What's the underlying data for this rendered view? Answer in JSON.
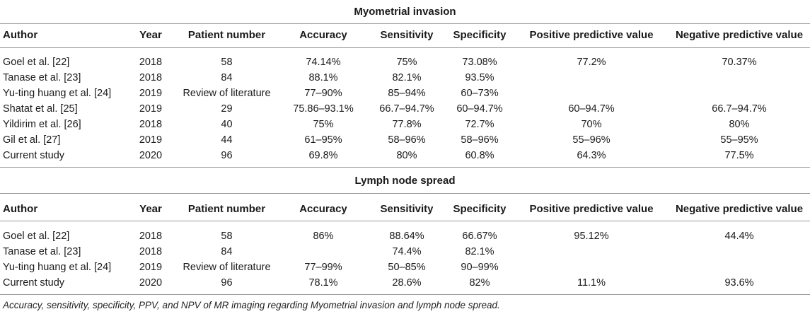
{
  "columns": [
    "Author",
    "Year",
    "Patient number",
    "Accuracy",
    "Sensitivity",
    "Specificity",
    "Positive predictive value",
    "Negative predictive value"
  ],
  "sections": [
    {
      "title": "Myometrial invasion",
      "rows": [
        [
          "Goel et al. [22]",
          "2018",
          "58",
          "74.14%",
          "75%",
          "73.08%",
          "77.2%",
          "70.37%"
        ],
        [
          "Tanase et al. [23]",
          "2018",
          "84",
          "88.1%",
          "82.1%",
          "93.5%",
          "",
          ""
        ],
        [
          "Yu-ting huang et al. [24]",
          "2019",
          "Review of literature",
          "77–90%",
          "85–94%",
          "60–73%",
          "",
          ""
        ],
        [
          "Shatat et al. [25]",
          "2019",
          "29",
          "75.86–93.1%",
          "66.7–94.7%",
          "60–94.7%",
          "60–94.7%",
          "66.7–94.7%"
        ],
        [
          "Yildirim et al. [26]",
          "2018",
          "40",
          "75%",
          "77.8%",
          "72.7%",
          "70%",
          "80%"
        ],
        [
          "Gil et al. [27]",
          "2019",
          "44",
          "61–95%",
          "58–96%",
          "58–96%",
          "55–96%",
          "55–95%"
        ],
        [
          "Current study",
          "2020",
          "96",
          "69.8%",
          "80%",
          "60.8%",
          "64.3%",
          "77.5%"
        ]
      ]
    },
    {
      "title": "Lymph node spread",
      "rows": [
        [
          "Goel et al. [22]",
          "2018",
          "58",
          "86%",
          "88.64%",
          "66.67%",
          "95.12%",
          "44.4%"
        ],
        [
          "Tanase et al. [23]",
          "2018",
          "84",
          "",
          "74.4%",
          "82.1%",
          "",
          ""
        ],
        [
          "Yu-ting huang et al. [24]",
          "2019",
          "Review of literature",
          "77–99%",
          "50–85%",
          "90–99%",
          "",
          ""
        ],
        [
          "Current study",
          "2020",
          "96",
          "78.1%",
          "28.6%",
          "82%",
          "11.1%",
          "93.6%"
        ]
      ]
    }
  ],
  "caption": "Accuracy, sensitivity, specificity, PPV, and NPV of MR imaging regarding Myometrial invasion and lymph node spread."
}
